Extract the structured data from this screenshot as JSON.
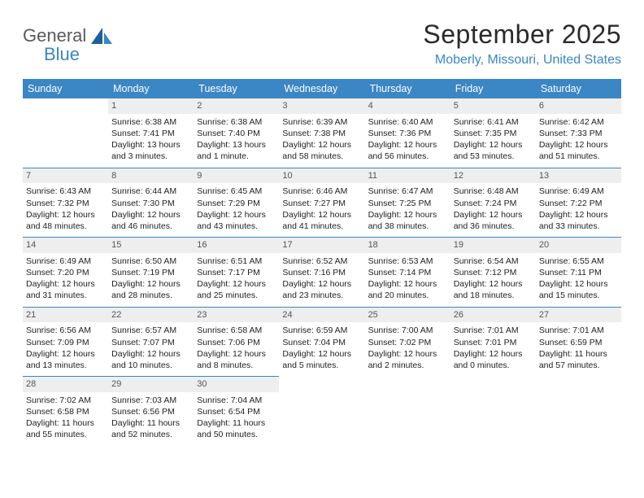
{
  "brand": {
    "general": "General",
    "blue": "Blue"
  },
  "title": "September 2025",
  "location": "Moberly, Missouri, United States",
  "colors": {
    "accent": "#3b86c5",
    "dayband": "#eeeeee",
    "text": "#222222"
  },
  "dow": [
    "Sunday",
    "Monday",
    "Tuesday",
    "Wednesday",
    "Thursday",
    "Friday",
    "Saturday"
  ],
  "weeks": [
    [
      {
        "n": "",
        "lines": []
      },
      {
        "n": "1",
        "lines": [
          "Sunrise: 6:38 AM",
          "Sunset: 7:41 PM",
          "Daylight: 13 hours and 3 minutes."
        ]
      },
      {
        "n": "2",
        "lines": [
          "Sunrise: 6:38 AM",
          "Sunset: 7:40 PM",
          "Daylight: 13 hours and 1 minute."
        ]
      },
      {
        "n": "3",
        "lines": [
          "Sunrise: 6:39 AM",
          "Sunset: 7:38 PM",
          "Daylight: 12 hours and 58 minutes."
        ]
      },
      {
        "n": "4",
        "lines": [
          "Sunrise: 6:40 AM",
          "Sunset: 7:36 PM",
          "Daylight: 12 hours and 56 minutes."
        ]
      },
      {
        "n": "5",
        "lines": [
          "Sunrise: 6:41 AM",
          "Sunset: 7:35 PM",
          "Daylight: 12 hours and 53 minutes."
        ]
      },
      {
        "n": "6",
        "lines": [
          "Sunrise: 6:42 AM",
          "Sunset: 7:33 PM",
          "Daylight: 12 hours and 51 minutes."
        ]
      }
    ],
    [
      {
        "n": "7",
        "lines": [
          "Sunrise: 6:43 AM",
          "Sunset: 7:32 PM",
          "Daylight: 12 hours and 48 minutes."
        ]
      },
      {
        "n": "8",
        "lines": [
          "Sunrise: 6:44 AM",
          "Sunset: 7:30 PM",
          "Daylight: 12 hours and 46 minutes."
        ]
      },
      {
        "n": "9",
        "lines": [
          "Sunrise: 6:45 AM",
          "Sunset: 7:29 PM",
          "Daylight: 12 hours and 43 minutes."
        ]
      },
      {
        "n": "10",
        "lines": [
          "Sunrise: 6:46 AM",
          "Sunset: 7:27 PM",
          "Daylight: 12 hours and 41 minutes."
        ]
      },
      {
        "n": "11",
        "lines": [
          "Sunrise: 6:47 AM",
          "Sunset: 7:25 PM",
          "Daylight: 12 hours and 38 minutes."
        ]
      },
      {
        "n": "12",
        "lines": [
          "Sunrise: 6:48 AM",
          "Sunset: 7:24 PM",
          "Daylight: 12 hours and 36 minutes."
        ]
      },
      {
        "n": "13",
        "lines": [
          "Sunrise: 6:49 AM",
          "Sunset: 7:22 PM",
          "Daylight: 12 hours and 33 minutes."
        ]
      }
    ],
    [
      {
        "n": "14",
        "lines": [
          "Sunrise: 6:49 AM",
          "Sunset: 7:20 PM",
          "Daylight: 12 hours and 31 minutes."
        ]
      },
      {
        "n": "15",
        "lines": [
          "Sunrise: 6:50 AM",
          "Sunset: 7:19 PM",
          "Daylight: 12 hours and 28 minutes."
        ]
      },
      {
        "n": "16",
        "lines": [
          "Sunrise: 6:51 AM",
          "Sunset: 7:17 PM",
          "Daylight: 12 hours and 25 minutes."
        ]
      },
      {
        "n": "17",
        "lines": [
          "Sunrise: 6:52 AM",
          "Sunset: 7:16 PM",
          "Daylight: 12 hours and 23 minutes."
        ]
      },
      {
        "n": "18",
        "lines": [
          "Sunrise: 6:53 AM",
          "Sunset: 7:14 PM",
          "Daylight: 12 hours and 20 minutes."
        ]
      },
      {
        "n": "19",
        "lines": [
          "Sunrise: 6:54 AM",
          "Sunset: 7:12 PM",
          "Daylight: 12 hours and 18 minutes."
        ]
      },
      {
        "n": "20",
        "lines": [
          "Sunrise: 6:55 AM",
          "Sunset: 7:11 PM",
          "Daylight: 12 hours and 15 minutes."
        ]
      }
    ],
    [
      {
        "n": "21",
        "lines": [
          "Sunrise: 6:56 AM",
          "Sunset: 7:09 PM",
          "Daylight: 12 hours and 13 minutes."
        ]
      },
      {
        "n": "22",
        "lines": [
          "Sunrise: 6:57 AM",
          "Sunset: 7:07 PM",
          "Daylight: 12 hours and 10 minutes."
        ]
      },
      {
        "n": "23",
        "lines": [
          "Sunrise: 6:58 AM",
          "Sunset: 7:06 PM",
          "Daylight: 12 hours and 8 minutes."
        ]
      },
      {
        "n": "24",
        "lines": [
          "Sunrise: 6:59 AM",
          "Sunset: 7:04 PM",
          "Daylight: 12 hours and 5 minutes."
        ]
      },
      {
        "n": "25",
        "lines": [
          "Sunrise: 7:00 AM",
          "Sunset: 7:02 PM",
          "Daylight: 12 hours and 2 minutes."
        ]
      },
      {
        "n": "26",
        "lines": [
          "Sunrise: 7:01 AM",
          "Sunset: 7:01 PM",
          "Daylight: 12 hours and 0 minutes."
        ]
      },
      {
        "n": "27",
        "lines": [
          "Sunrise: 7:01 AM",
          "Sunset: 6:59 PM",
          "Daylight: 11 hours and 57 minutes."
        ]
      }
    ],
    [
      {
        "n": "28",
        "lines": [
          "Sunrise: 7:02 AM",
          "Sunset: 6:58 PM",
          "Daylight: 11 hours and 55 minutes."
        ]
      },
      {
        "n": "29",
        "lines": [
          "Sunrise: 7:03 AM",
          "Sunset: 6:56 PM",
          "Daylight: 11 hours and 52 minutes."
        ]
      },
      {
        "n": "30",
        "lines": [
          "Sunrise: 7:04 AM",
          "Sunset: 6:54 PM",
          "Daylight: 11 hours and 50 minutes."
        ]
      },
      {
        "n": "",
        "lines": []
      },
      {
        "n": "",
        "lines": []
      },
      {
        "n": "",
        "lines": []
      },
      {
        "n": "",
        "lines": []
      }
    ]
  ]
}
